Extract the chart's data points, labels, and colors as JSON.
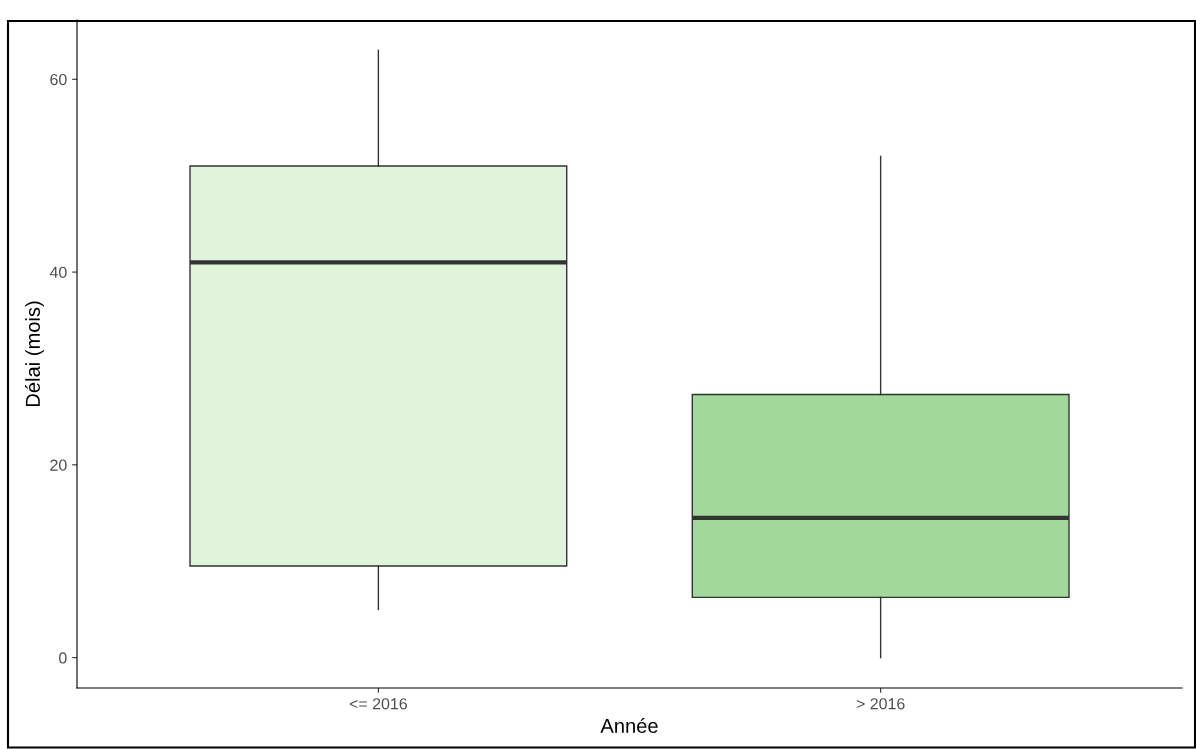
{
  "chart_data": {
    "type": "box",
    "xlabel": "Année",
    "ylabel": "Délai (mois)",
    "categories": [
      "<= 2016",
      "> 2016"
    ],
    "boxes": [
      {
        "low": 5,
        "q1": 9.5,
        "median": 41,
        "q3": 51,
        "high": 63
      },
      {
        "low": 0,
        "q1": 6.25,
        "median": 14.5,
        "q3": 27.3,
        "high": 52
      }
    ],
    "colors": [
      "#e0f3db",
      "#a1d99b"
    ],
    "ylim": [
      -3.15,
      66.15
    ],
    "yticks": [
      0,
      20,
      40,
      60
    ],
    "grid": false
  }
}
